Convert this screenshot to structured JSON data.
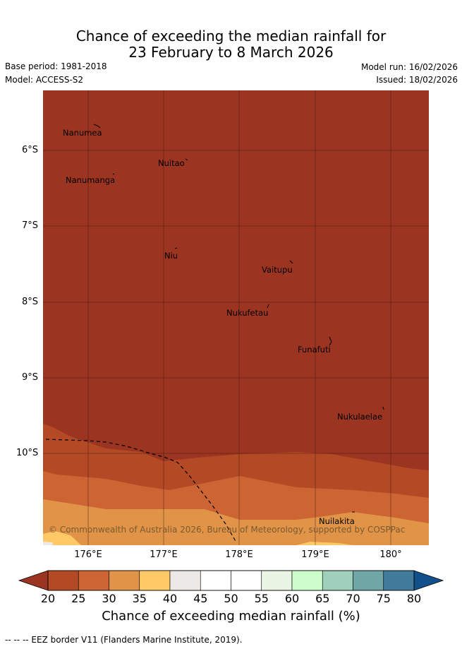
{
  "title_line1": "Chance of exceeding the median rainfall for",
  "title_line2": "23 February to 8 March 2026",
  "base_period": "Base period: 1981-2018",
  "model": "Model: ACCESS-S2",
  "model_run": "Model run: 16/02/2026",
  "issued": "Issued: 18/02/2026",
  "lat_ticks": [
    "6°S",
    "7°S",
    "8°S",
    "9°S",
    "10°S"
  ],
  "lon_ticks": [
    "176°E",
    "177°E",
    "178°E",
    "179°E",
    "180°"
  ],
  "places": [
    "Nanumea",
    "Nuitao",
    "Nanumanga",
    "Niu",
    "Vaitupu",
    "Nukufetau",
    "Funafuti",
    "Nukulaelae",
    "Nuilakita"
  ],
  "copyright": "© Commonwealth of Australia 2026, Bureau of Meteorology, supported by COSPPac",
  "colorbar": {
    "ticks": [
      "20",
      "25",
      "30",
      "35",
      "40",
      "45",
      "50",
      "55",
      "60",
      "65",
      "70",
      "75",
      "80"
    ],
    "colors": [
      "#9b3421",
      "#b34a25",
      "#cc6533",
      "#e19448",
      "#fec966",
      "#ece9e6",
      "#ffffff",
      "#ffffff",
      "#e9f6e6",
      "#cdfccb",
      "#9ed0bc",
      "#71a6a7",
      "#417b9b",
      "#11508b"
    ],
    "title": "Chance of exceeding median rainfall (%)"
  },
  "footnote": "-- -- -- EEZ border V11 (Flanders Marine Institute, 2019)."
}
